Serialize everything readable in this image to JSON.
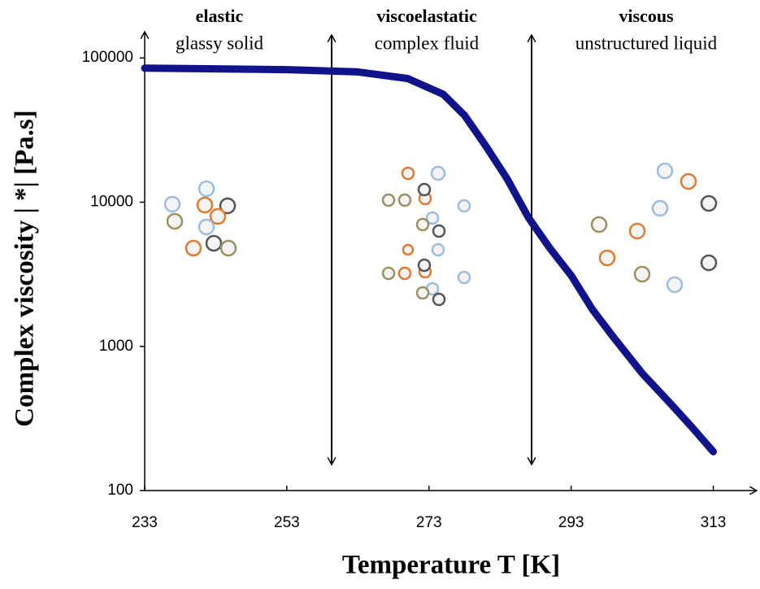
{
  "chart_data": {
    "type": "line",
    "log_y": true,
    "x_label": "Temperature T [K]",
    "y_label": "Complex viscosity |  *| [Pa.s]",
    "annotations": [
      "elastic",
      "glassy solid",
      "viscoelastatic",
      "complex fluid",
      "viscous",
      "unstructured liquid"
    ],
    "xlim": [
      233,
      319
    ],
    "xticks": [
      233,
      253,
      273,
      293,
      313
    ],
    "ylim": [
      100,
      150000
    ],
    "yticks": [
      100,
      1000,
      10000,
      100000
    ],
    "series": [
      {
        "color": "#10138a",
        "x": [
          233,
          243,
          253,
          263,
          270,
          275,
          278,
          281,
          284,
          287,
          290,
          293,
          296,
          299,
          303,
          307,
          310,
          313
        ],
        "values": [
          85000,
          84000,
          83000,
          80000,
          72000,
          56000,
          40000,
          24500,
          14500,
          7800,
          4800,
          3100,
          1800,
          1150,
          650,
          400,
          275,
          186
        ]
      }
    ]
  }
}
